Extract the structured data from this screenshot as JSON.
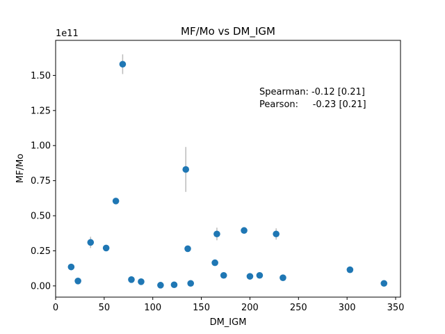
{
  "chart_data": {
    "type": "scatter",
    "title": "MF/Mo vs DM_IGM",
    "xlabel": "DM_IGM",
    "ylabel": "MF/Mo",
    "y_multiplier_label": "1e11",
    "y_scale": 100000000000.0,
    "xlim": [
      0,
      355
    ],
    "ylim": [
      -0.08,
      1.75
    ],
    "xticks": [
      0,
      50,
      100,
      150,
      200,
      250,
      300,
      350
    ],
    "xtick_labels": [
      "0",
      "50",
      "100",
      "150",
      "200",
      "250",
      "300",
      "350"
    ],
    "yticks": [
      0.0,
      0.25,
      0.5,
      0.75,
      1.0,
      1.25,
      1.5
    ],
    "ytick_labels": [
      "0.00",
      "0.25",
      "0.50",
      "0.75",
      "1.00",
      "1.25",
      "1.50"
    ],
    "grid": false,
    "marker_color": "#1f77b4",
    "errorbar_color": "#bbbbbb",
    "points": [
      {
        "x": 16,
        "y": 0.135,
        "err": 0.0
      },
      {
        "x": 23,
        "y": 0.035,
        "err": 0.0
      },
      {
        "x": 36,
        "y": 0.31,
        "err": 0.04
      },
      {
        "x": 52,
        "y": 0.27,
        "err": 0.015
      },
      {
        "x": 62,
        "y": 0.605,
        "err": 0.0
      },
      {
        "x": 69,
        "y": 1.58,
        "err": 0.07
      },
      {
        "x": 78,
        "y": 0.045,
        "err": 0.0
      },
      {
        "x": 88,
        "y": 0.03,
        "err": 0.0
      },
      {
        "x": 108,
        "y": 0.005,
        "err": 0.0
      },
      {
        "x": 122,
        "y": 0.008,
        "err": 0.0
      },
      {
        "x": 134,
        "y": 0.83,
        "err": 0.16
      },
      {
        "x": 136,
        "y": 0.265,
        "err": 0.0
      },
      {
        "x": 139,
        "y": 0.018,
        "err": 0.0
      },
      {
        "x": 164,
        "y": 0.165,
        "err": 0.0
      },
      {
        "x": 166,
        "y": 0.37,
        "err": 0.045
      },
      {
        "x": 173,
        "y": 0.075,
        "err": 0.0
      },
      {
        "x": 194,
        "y": 0.395,
        "err": 0.0
      },
      {
        "x": 200,
        "y": 0.068,
        "err": 0.0
      },
      {
        "x": 210,
        "y": 0.075,
        "err": 0.0
      },
      {
        "x": 227,
        "y": 0.37,
        "err": 0.04
      },
      {
        "x": 234,
        "y": 0.058,
        "err": 0.0
      },
      {
        "x": 303,
        "y": 0.115,
        "err": 0.0
      },
      {
        "x": 338,
        "y": 0.018,
        "err": 0.0
      }
    ],
    "annotations": {
      "spearman": "Spearman: -0.12 [0.21]",
      "pearson": "Pearson:     -0.23 [0.21]"
    }
  }
}
